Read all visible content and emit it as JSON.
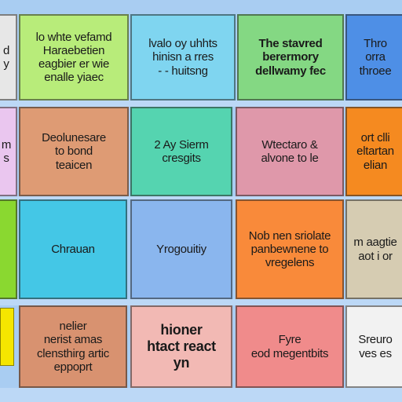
{
  "board": {
    "cards": [
      {
        "id": "r1c0",
        "lines": [
          "d",
          "y"
        ],
        "color": "#e7e7e7"
      },
      {
        "id": "r1c1",
        "lines": [
          "lo whte vefamd",
          "Haraebetien",
          "eagbier er wie",
          "enalle yiaec"
        ],
        "color": "#b8ec7a"
      },
      {
        "id": "r1c2",
        "lines": [
          "lvalo oy uhhts",
          "hinisn  a rres",
          "- - huitsng"
        ],
        "color": "#7fd5f0"
      },
      {
        "id": "r1c3",
        "lines": [
          "The stavred",
          "berermory",
          "dellwamy fec"
        ],
        "color": "#84d883"
      },
      {
        "id": "r1c4",
        "lines": [
          "Thro",
          "orra",
          "throee"
        ],
        "color": "#4e8fe6"
      },
      {
        "id": "r2c0",
        "lines": [
          "m",
          "s"
        ],
        "color": "#eac6ef"
      },
      {
        "id": "r2c1",
        "lines": [
          "Deolunesare",
          "to bond",
          "teaicen"
        ],
        "color": "#de9b74"
      },
      {
        "id": "r2c2",
        "lines": [
          "2 Ay Sierm",
          "cresgits"
        ],
        "color": "#55d4b0"
      },
      {
        "id": "r2c3",
        "lines": [
          "Wtectaro &",
          "alvone to le"
        ],
        "color": "#df98aa"
      },
      {
        "id": "r2c4",
        "lines": [
          "ort clli",
          "eltartan",
          "elian"
        ],
        "color": "#f58a20"
      },
      {
        "id": "r3c0",
        "lines": [
          ""
        ],
        "color": "#8ad830"
      },
      {
        "id": "r3c1",
        "lines": [
          "Chrauan"
        ],
        "color": "#44c7e6"
      },
      {
        "id": "r3c2",
        "lines": [
          "Yrogouitiy"
        ],
        "color": "#8ab6ee"
      },
      {
        "id": "r3c3",
        "lines": [
          "Nob nen sriolate",
          "panbewnene to",
          "vregelens"
        ],
        "color": "#f98a3a"
      },
      {
        "id": "r3c4",
        "lines": [
          "m aagtie",
          "aot i or"
        ],
        "color": "#d6ccb2"
      },
      {
        "id": "r4c1",
        "lines": [
          "nelier",
          "nerist amas",
          "clensthirg  artic",
          "eppoprt"
        ],
        "color": "#d89270"
      },
      {
        "id": "r4c2",
        "lines": [
          "hioner",
          "htact react",
          "yn"
        ],
        "color": "#f2b9b4"
      },
      {
        "id": "r4c3",
        "lines": [
          "Fyre",
          "eod megentbits"
        ],
        "color": "#f08b8b"
      },
      {
        "id": "r4c4",
        "lines": [
          "Sreuro",
          "ves es"
        ],
        "color": "#f2f2f2"
      }
    ]
  }
}
